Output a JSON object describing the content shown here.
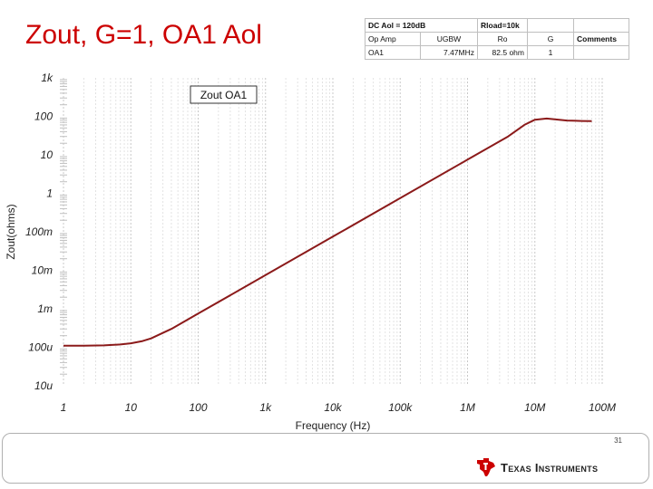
{
  "slide": {
    "title": "Zout, G=1, OA1 Aol",
    "page_number": "31",
    "brand": "Texas Instruments"
  },
  "param_table": {
    "dc_aol": "DC Aol = 120dB",
    "rload": "Rload=10k",
    "headers": [
      "Op Amp",
      "UGBW",
      "Ro",
      "G",
      "Comments"
    ],
    "row": [
      "OA1",
      "7.47MHz",
      "82.5 ohm",
      "1",
      ""
    ]
  },
  "chart_data": {
    "type": "line",
    "title": "",
    "legend_label": "Zout OA1",
    "xlabel": "Frequency (Hz)",
    "ylabel": "Zout(ohms)",
    "xscale": "log",
    "yscale": "log",
    "xlim": [
      1,
      100000000
    ],
    "ylim": [
      1e-05,
      1000
    ],
    "x_ticks": [
      "1",
      "10",
      "100",
      "1k",
      "10k",
      "100k",
      "1M",
      "10M",
      "100M"
    ],
    "y_ticks": [
      "1k",
      "100",
      "10",
      "1",
      "100m",
      "10m",
      "1m",
      "100u",
      "10u"
    ],
    "grid": true,
    "series": [
      {
        "name": "Zout OA1",
        "color": "#8b1a1a",
        "x": [
          1,
          2,
          4,
          7,
          10,
          15,
          20,
          40,
          100,
          1000,
          10000,
          100000,
          1000000,
          4000000,
          7000000,
          10000000,
          15000000,
          30000000,
          50000000,
          70000000
        ],
        "y": [
          0.00011,
          0.00011,
          0.000112,
          0.000118,
          0.000127,
          0.000145,
          0.00017,
          0.0003,
          0.00075,
          0.0075,
          0.075,
          0.75,
          7.5,
          30,
          60,
          82,
          88,
          78,
          76,
          75
        ]
      }
    ]
  }
}
